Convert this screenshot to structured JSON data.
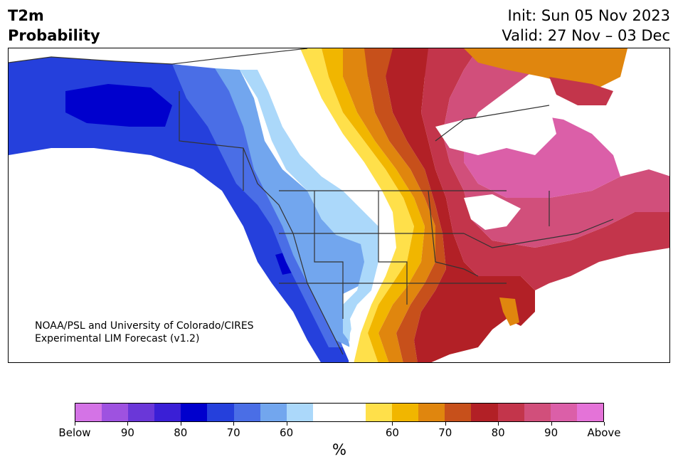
{
  "header": {
    "title_line1": "T2m",
    "title_line2": "Probability",
    "init": "Init: Sun 05 Nov 2023",
    "valid": "Valid: 27 Nov – 03 Dec"
  },
  "credit": {
    "line1": "NOAA/PSL and University of Colorado/CIRES",
    "line2": "Experimental LIM Forecast (v1.2)"
  },
  "colorbar": {
    "unit": "%",
    "colors": [
      "#d473e6",
      "#9e52e0",
      "#6a37d8",
      "#3a1fd6",
      "#0000cd",
      "#2540dc",
      "#4a6ee6",
      "#72a6ee",
      "#abd8fa",
      "#ffffff",
      "#ffffff",
      "#ffe04a",
      "#f1b600",
      "#e0860e",
      "#c7501b",
      "#b22026",
      "#c3354b",
      "#d14f7b",
      "#db5fa8",
      "#e473d8"
    ],
    "labels": [
      "Below",
      "90",
      "80",
      "70",
      "60",
      "60",
      "70",
      "80",
      "90",
      "Above"
    ]
  },
  "map": {
    "colors": {
      "blue_deep": "#0000cd",
      "blue_dark": "#2540dc",
      "blue_med": "#4a6ee6",
      "blue_light": "#72a6ee",
      "blue_pale": "#abd8fa",
      "yellow": "#ffe04a",
      "gold": "#f1b600",
      "orange": "#e0860e",
      "rust": "#c7501b",
      "red": "#b22026",
      "crimson": "#c3354b",
      "rose": "#d14f7b",
      "pink": "#db5fa8",
      "magenta": "#e473d8",
      "border": "#333333"
    }
  }
}
